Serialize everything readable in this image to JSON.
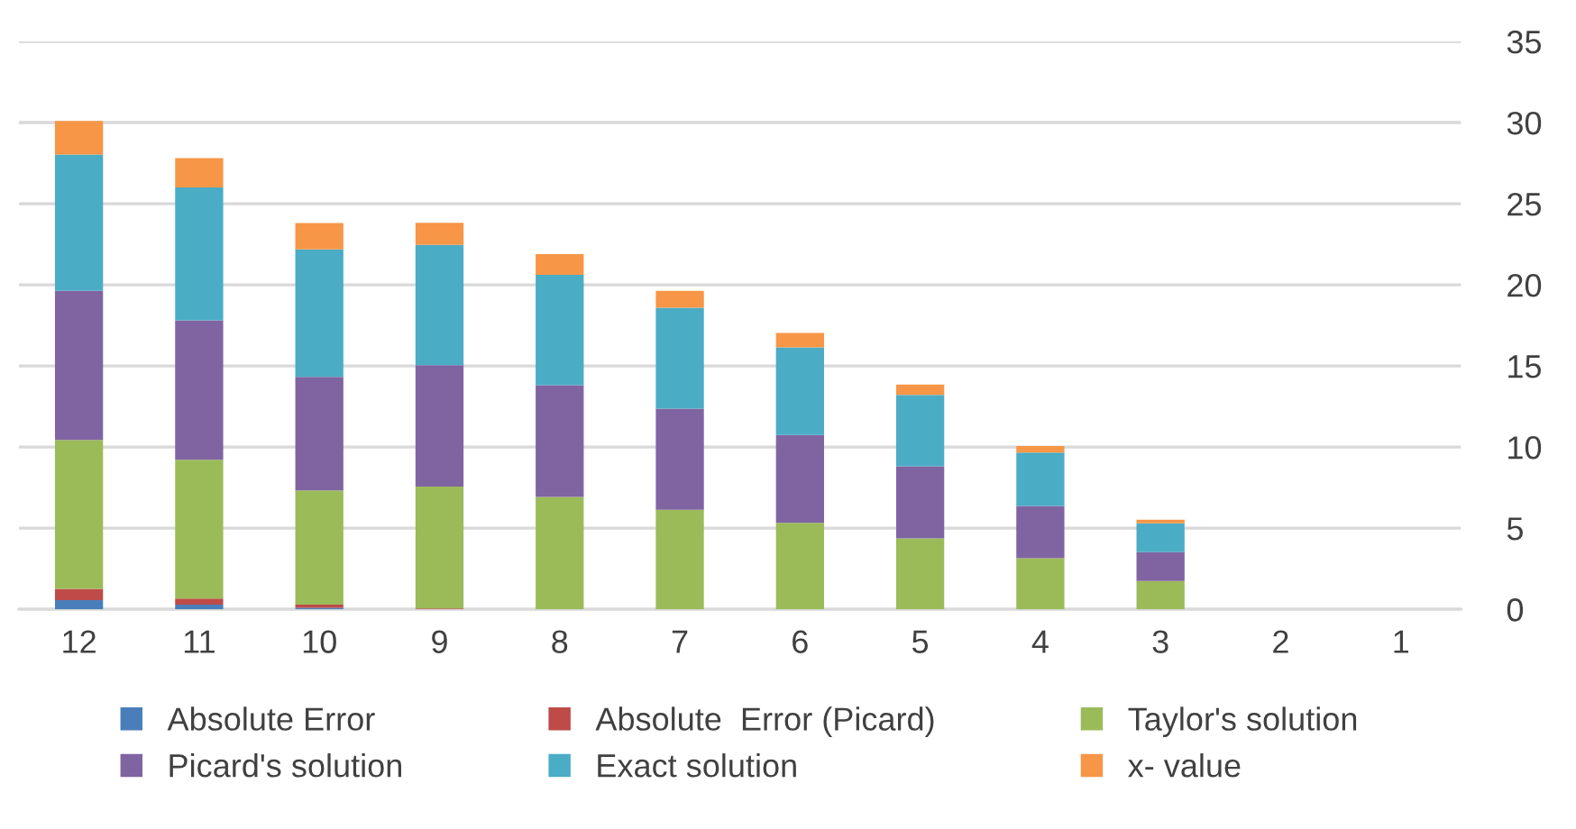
{
  "chart_data": {
    "type": "bar",
    "stacked": true,
    "categories": [
      "12",
      "11",
      "10",
      "9",
      "8",
      "7",
      "6",
      "5",
      "4",
      "3",
      "2",
      "1"
    ],
    "series": [
      {
        "name": "Absolute Error",
        "color": "#4a7ebb",
        "values": [
          0.56,
          0.29,
          0.1,
          null,
          0,
          0,
          0,
          0,
          0,
          0,
          0,
          0
        ]
      },
      {
        "name": "Absolute  Error (Picard)",
        "color": "#be4b48",
        "values": [
          0.7,
          0.38,
          0.19,
          0.05,
          0,
          0,
          0,
          0,
          0,
          0,
          0,
          0
        ]
      },
      {
        "name": "Taylor's solution",
        "color": "#9bbb59",
        "values": [
          9.18,
          8.55,
          7.04,
          7.52,
          6.92,
          6.14,
          5.33,
          4.37,
          3.15,
          1.74,
          0,
          0
        ]
      },
      {
        "name": "Picard's solution",
        "color": "#8064a2",
        "values": [
          9.19,
          8.59,
          7.0,
          7.48,
          6.89,
          6.23,
          5.41,
          4.44,
          3.22,
          1.78,
          0,
          0
        ]
      },
      {
        "name": "Exact solution",
        "color": "#4bacc6",
        "values": [
          8.4,
          8.19,
          7.85,
          7.41,
          6.81,
          6.22,
          5.4,
          4.41,
          3.29,
          1.78,
          0,
          0
        ]
      },
      {
        "name": "x- value",
        "color": "#f79646",
        "values": [
          2.07,
          1.81,
          1.63,
          1.36,
          1.27,
          1.04,
          0.89,
          0.63,
          0.41,
          0.22,
          0,
          0
        ]
      }
    ],
    "ylim": [
      0,
      35
    ],
    "yticks": [
      0,
      5,
      10,
      15,
      20,
      25,
      30,
      35
    ],
    "grid": "y",
    "legend": "bottom"
  }
}
